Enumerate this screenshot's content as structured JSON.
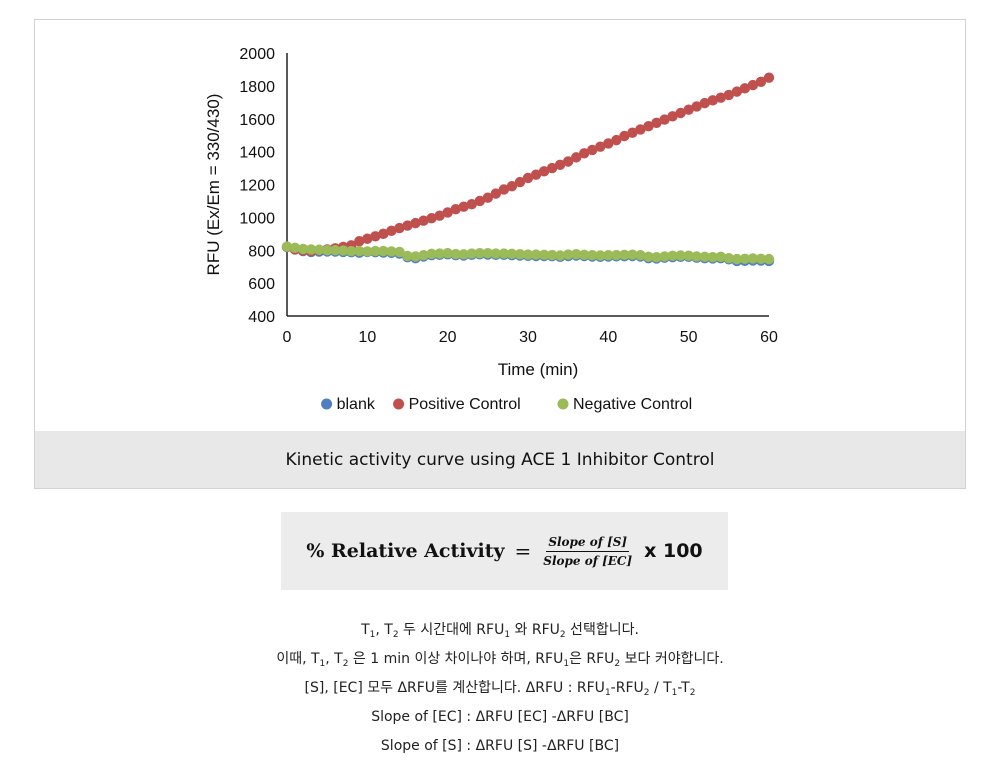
{
  "chart_data": {
    "type": "scatter",
    "xlabel": "Time (min)",
    "ylabel": "RFU (Ex/Em = 330/430)",
    "xlim": [
      0,
      60
    ],
    "ylim": [
      400,
      2000
    ],
    "xticks": [
      0,
      10,
      20,
      30,
      40,
      50,
      60
    ],
    "yticks": [
      400,
      600,
      800,
      1000,
      1200,
      1400,
      1600,
      1800,
      2000
    ],
    "grid": false,
    "legend_position": "bottom",
    "series": [
      {
        "name": "blank",
        "color": "#4f7fc0",
        "x": [
          0,
          1,
          2,
          3,
          4,
          5,
          6,
          7,
          8,
          9,
          10,
          11,
          12,
          13,
          14,
          15,
          16,
          17,
          18,
          19,
          20,
          21,
          22,
          23,
          24,
          25,
          26,
          27,
          28,
          29,
          30,
          31,
          32,
          33,
          34,
          35,
          36,
          37,
          38,
          39,
          40,
          41,
          42,
          43,
          44,
          45,
          46,
          47,
          48,
          49,
          50,
          51,
          52,
          53,
          54,
          55,
          56,
          57,
          58,
          59,
          60
        ],
        "y": [
          820,
          805,
          795,
          790,
          792,
          793,
          792,
          790,
          788,
          785,
          790,
          788,
          786,
          784,
          780,
          758,
          752,
          762,
          770,
          772,
          775,
          770,
          768,
          772,
          775,
          774,
          772,
          772,
          770,
          768,
          766,
          765,
          765,
          764,
          760,
          765,
          768,
          765,
          762,
          760,
          762,
          763,
          764,
          765,
          762,
          752,
          750,
          755,
          758,
          760,
          760,
          755,
          752,
          750,
          752,
          745,
          735,
          736,
          738,
          737,
          735
        ]
      },
      {
        "name": "Positive Control",
        "color": "#c0504d",
        "x": [
          0,
          1,
          2,
          3,
          4,
          5,
          6,
          7,
          8,
          9,
          10,
          11,
          12,
          13,
          14,
          15,
          16,
          17,
          18,
          19,
          20,
          21,
          22,
          23,
          24,
          25,
          26,
          27,
          28,
          29,
          30,
          31,
          32,
          33,
          34,
          35,
          36,
          37,
          38,
          39,
          40,
          41,
          42,
          43,
          44,
          45,
          46,
          47,
          48,
          49,
          50,
          51,
          52,
          53,
          54,
          55,
          56,
          57,
          58,
          59,
          60
        ],
        "y": [
          820,
          805,
          798,
          795,
          800,
          805,
          812,
          820,
          830,
          855,
          870,
          885,
          900,
          918,
          935,
          950,
          965,
          980,
          995,
          1010,
          1030,
          1050,
          1065,
          1080,
          1100,
          1120,
          1145,
          1170,
          1190,
          1215,
          1240,
          1260,
          1280,
          1300,
          1320,
          1340,
          1365,
          1390,
          1410,
          1430,
          1450,
          1470,
          1495,
          1515,
          1535,
          1555,
          1575,
          1595,
          1615,
          1635,
          1655,
          1675,
          1695,
          1712,
          1728,
          1745,
          1765,
          1785,
          1805,
          1825,
          1850
        ]
      },
      {
        "name": "Negative Control",
        "color": "#9bbb59",
        "x": [
          0,
          1,
          2,
          3,
          4,
          5,
          6,
          7,
          8,
          9,
          10,
          11,
          12,
          13,
          14,
          15,
          16,
          17,
          18,
          19,
          20,
          21,
          22,
          23,
          24,
          25,
          26,
          27,
          28,
          29,
          30,
          31,
          32,
          33,
          34,
          35,
          36,
          37,
          38,
          39,
          40,
          41,
          42,
          43,
          44,
          45,
          46,
          47,
          48,
          49,
          50,
          51,
          52,
          53,
          54,
          55,
          56,
          57,
          58,
          59,
          60
        ],
        "y": [
          822,
          815,
          808,
          805,
          803,
          800,
          800,
          798,
          795,
          795,
          793,
          795,
          795,
          793,
          790,
          765,
          762,
          770,
          778,
          780,
          782,
          777,
          775,
          780,
          782,
          782,
          780,
          780,
          778,
          776,
          774,
          774,
          772,
          771,
          768,
          774,
          776,
          772,
          770,
          768,
          770,
          771,
          772,
          773,
          770,
          760,
          758,
          762,
          766,
          768,
          767,
          762,
          760,
          758,
          760,
          752,
          746,
          748,
          750,
          748,
          746
        ]
      }
    ]
  },
  "caption": "Kinetic activity curve using ACE 1 Inhibitor Control",
  "formula": {
    "lhs": "% Relative Activity",
    "equals": "=",
    "numerator": "Slope of [S]",
    "denominator": "Slope of [EC]",
    "multiplier": "x 100"
  },
  "notes": {
    "line1": {
      "t1": "T",
      "t1_sub": "1",
      "sep1": ", T",
      "t2_sub": "2",
      "a": " 두 시간대에 RFU",
      "rfu1_sub": "1",
      "b": " 와 RFU",
      "rfu2_sub": "2",
      "c": " 선택합니다."
    },
    "line2": {
      "a": "이때, T",
      "t1_sub": "1",
      "b": ", T",
      "t2_sub": "2",
      "c": " 은 1 min 이상 차이나야 하며, RFU",
      "rfu1_sub": "1",
      "d": "은 RFU",
      "rfu2_sub": "2",
      "e": " 보다 커야합니다."
    },
    "line3": {
      "a": "[S], [EC] 모두 ΔRFU를 계산합니다.   ΔRFU : RFU",
      "rfu1_sub": "1",
      "b": "-RFU",
      "rfu2_sub": "2",
      "c": " / T",
      "t1_sub": "1",
      "d": "-T",
      "t2_sub": "2"
    },
    "line4": "Slope of [EC] : ΔRFU [EC] -ΔRFU [BC]",
    "line5": "Slope of [S] : ΔRFU [S] -ΔRFU [BC]"
  }
}
